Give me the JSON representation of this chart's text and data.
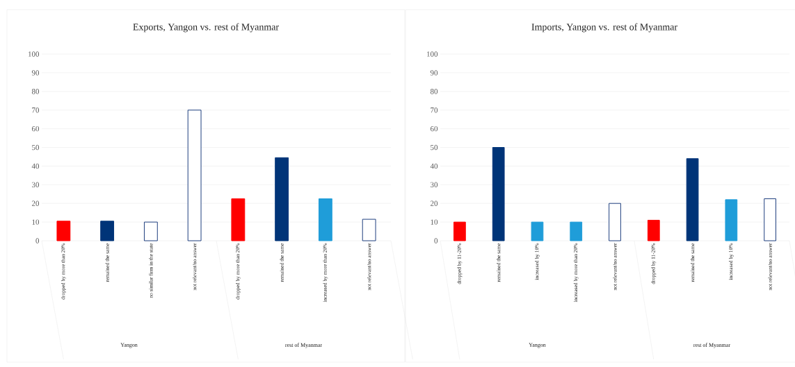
{
  "chart_data": [
    {
      "type": "bar",
      "title": "Exports, Yangon vs. rest of Myanmar",
      "categories": [
        "dropped by more than 20%",
        "remained the same",
        "no similar firm in the state",
        "not relevant/no answer",
        "dropped by more than 20%",
        "remained the same",
        "increased by more than 20%",
        "not relevant/no answer"
      ],
      "values": [
        10.5,
        10.5,
        10,
        70,
        22.5,
        44.5,
        22.5,
        11.5
      ],
      "colors": [
        "#ff0000",
        "#003478",
        "#ffffff",
        "#ffffff",
        "#ff0000",
        "#003478",
        "#1f9dd9",
        "#ffffff"
      ],
      "ylim": [
        0,
        100
      ],
      "yticks": [
        0,
        10,
        20,
        30,
        40,
        50,
        60,
        70,
        80,
        90,
        100
      ],
      "grid": "y",
      "annotations": [
        "Yangon",
        "rest of Myanmar"
      ]
    },
    {
      "type": "bar",
      "title": "Imports, Yangon vs. rest of Myanmar",
      "categories": [
        "dropped by 11-20%",
        "remained the same",
        "increased by 10%",
        "increased by more than 20%",
        "not relevant/no answer",
        "dropped by 11-20%",
        "remained the same",
        "increased by 10%",
        "not relevant/no answer"
      ],
      "values": [
        10,
        50,
        10,
        10,
        20,
        11,
        44,
        22,
        22.5
      ],
      "colors": [
        "#ff0000",
        "#003478",
        "#1f9dd9",
        "#1f9dd9",
        "#ffffff",
        "#ff0000",
        "#003478",
        "#1f9dd9",
        "#ffffff"
      ],
      "ylim": [
        0,
        100
      ],
      "yticks": [
        0,
        10,
        20,
        30,
        40,
        50,
        60,
        70,
        80,
        90,
        100
      ],
      "grid": "y",
      "annotations": [
        "Yangon",
        "rest of Myanmar"
      ]
    }
  ]
}
